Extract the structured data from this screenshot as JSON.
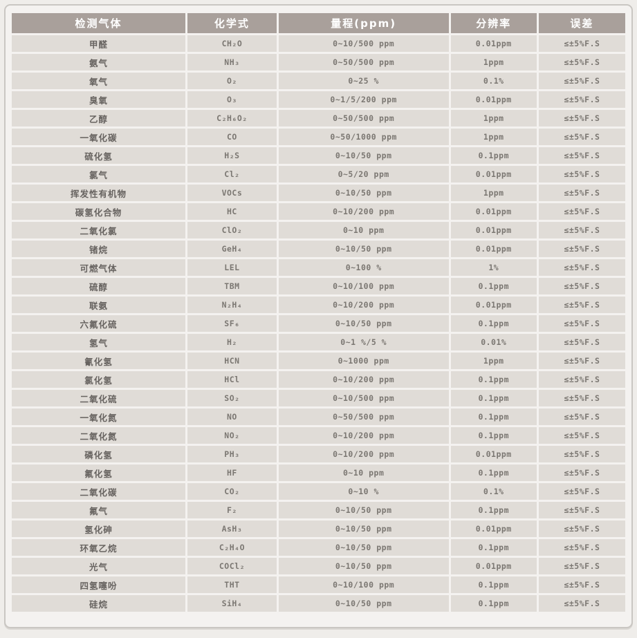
{
  "colors": {
    "page_bg": "#efedea",
    "panel_bg": "#f4f2f0",
    "panel_border": "#c9c6c2",
    "header_bg": "#a9a09b",
    "header_text": "#ffffff",
    "row_bg": "#e0dcd7",
    "name_text": "#676360",
    "value_text": "#7b7772"
  },
  "table": {
    "headers": [
      "检测气体",
      "化学式",
      "量程(ppm)",
      "分辨率",
      "误差"
    ],
    "rows": [
      [
        "甲醛",
        "CH₂O",
        "0∼10/500 ppm",
        "0.01ppm",
        "≤±5%F.S"
      ],
      [
        "氨气",
        "NH₃",
        "0∼50/500 ppm",
        "1ppm",
        "≤±5%F.S"
      ],
      [
        "氧气",
        "O₂",
        "0∼25 %",
        "0.1%",
        "≤±5%F.S"
      ],
      [
        "臭氧",
        "O₃",
        "0∼1/5/200 ppm",
        "0.01ppm",
        "≤±5%F.S"
      ],
      [
        "乙醇",
        "C₂H₆O₂",
        "0∼50/500 ppm",
        "1ppm",
        "≤±5%F.S"
      ],
      [
        "一氧化碳",
        "CO",
        "0∼50/1000 ppm",
        "1ppm",
        "≤±5%F.S"
      ],
      [
        "硫化氢",
        "H₂S",
        "0∼10/50 ppm",
        "0.1ppm",
        "≤±5%F.S"
      ],
      [
        "氯气",
        "Cl₂",
        "0∼5/20 ppm",
        "0.01ppm",
        "≤±5%F.S"
      ],
      [
        "挥发性有机物",
        "VOCs",
        "0∼10/50 ppm",
        "1ppm",
        "≤±5%F.S"
      ],
      [
        "碳氢化合物",
        "HC",
        "0∼10/200 ppm",
        "0.01ppm",
        "≤±5%F.S"
      ],
      [
        "二氧化氯",
        "ClO₂",
        "0∼10 ppm",
        "0.01ppm",
        "≤±5%F.S"
      ],
      [
        "锗烷",
        "GeH₄",
        "0∼10/50 ppm",
        "0.01ppm",
        "≤±5%F.S"
      ],
      [
        "可燃气体",
        "LEL",
        "0∼100 %",
        "1%",
        "≤±5%F.S"
      ],
      [
        "硫醇",
        "TBM",
        "0∼10/100 ppm",
        "0.1ppm",
        "≤±5%F.S"
      ],
      [
        "联氨",
        "N₂H₄",
        "0∼10/200 ppm",
        "0.01ppm",
        "≤±5%F.S"
      ],
      [
        "六氟化硫",
        "SF₆",
        "0∼10/50 ppm",
        "0.1ppm",
        "≤±5%F.S"
      ],
      [
        "氢气",
        "H₂",
        "0∼1 %/5 %",
        "0.01%",
        "≤±5%F.S"
      ],
      [
        "氰化氢",
        "HCN",
        "0∼1000 ppm",
        "1ppm",
        "≤±5%F.S"
      ],
      [
        "氯化氢",
        "HCl",
        "0∼10/200 ppm",
        "0.1ppm",
        "≤±5%F.S"
      ],
      [
        "二氧化硫",
        "SO₂",
        "0∼10/500 ppm",
        "0.1ppm",
        "≤±5%F.S"
      ],
      [
        "一氧化氮",
        "NO",
        "0∼50/500 ppm",
        "0.1ppm",
        "≤±5%F.S"
      ],
      [
        "二氧化氮",
        "NO₂",
        "0∼10/200 ppm",
        "0.1ppm",
        "≤±5%F.S"
      ],
      [
        "磷化氢",
        "PH₃",
        "0∼10/200 ppm",
        "0.01ppm",
        "≤±5%F.S"
      ],
      [
        "氟化氢",
        "HF",
        "0∼10 ppm",
        "0.1ppm",
        "≤±5%F.S"
      ],
      [
        "二氧化碳",
        "CO₂",
        "0∼10 %",
        "0.1%",
        "≤±5%F.S"
      ],
      [
        "氟气",
        "F₂",
        "0∼10/50 ppm",
        "0.1ppm",
        "≤±5%F.S"
      ],
      [
        "氢化砷",
        "AsH₃",
        "0∼10/50 ppm",
        "0.01ppm",
        "≤±5%F.S"
      ],
      [
        "环氧乙烷",
        "C₂H₄O",
        "0∼10/50 ppm",
        "0.1ppm",
        "≤±5%F.S"
      ],
      [
        "光气",
        "COCl₂",
        "0∼10/50 ppm",
        "0.01ppm",
        "≤±5%F.S"
      ],
      [
        "四氢噻吩",
        "THT",
        "0∼10/100 ppm",
        "0.1ppm",
        "≤±5%F.S"
      ],
      [
        "硅烷",
        "SiH₄",
        "0∼10/50 ppm",
        "0.1ppm",
        "≤±5%F.S"
      ]
    ]
  }
}
